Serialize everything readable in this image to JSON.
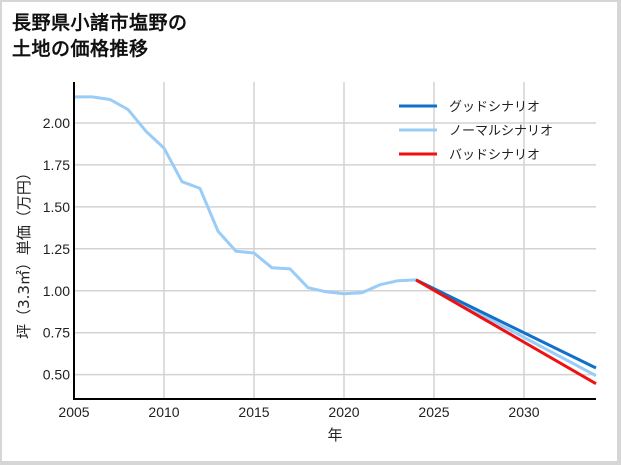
{
  "title_lines": [
    "長野県小諸市塩野の",
    "土地の価格推移"
  ],
  "chart_data": {
    "type": "line",
    "title": "長野県小諸市塩野の土地の価格推移",
    "xlabel": "年",
    "ylabel": "坪（3.3㎡）単価（万円）",
    "xlim": [
      2005,
      2034
    ],
    "ylim": [
      0.355,
      2.244
    ],
    "x_ticks": [
      2005,
      2010,
      2015,
      2020,
      2025,
      2030
    ],
    "y_ticks": [
      0.5,
      0.75,
      1.0,
      1.25,
      1.5,
      1.75,
      2.0
    ],
    "y_tick_labels": [
      "0.50",
      "0.75",
      "1.00",
      "1.25",
      "1.50",
      "1.75",
      "2.00"
    ],
    "grid": true,
    "legend_position": "upper right",
    "series": [
      {
        "name": "グッドシナリオ",
        "color": "#1171c9",
        "x": [
          2024,
          2034
        ],
        "values": [
          1.065,
          0.54
        ]
      },
      {
        "name": "ノーマルシナリオ",
        "color": "#99ccf7",
        "x": [
          2005,
          2006,
          2007,
          2008,
          2009,
          2010,
          2011,
          2012,
          2013,
          2014,
          2015,
          2016,
          2017,
          2018,
          2019,
          2020,
          2021,
          2022,
          2023,
          2024,
          2034
        ],
        "values": [
          2.155,
          2.155,
          2.14,
          2.08,
          1.95,
          1.85,
          1.65,
          1.61,
          1.355,
          1.235,
          1.225,
          1.137,
          1.13,
          1.018,
          0.994,
          0.982,
          0.988,
          1.036,
          1.06,
          1.065,
          0.494
        ]
      },
      {
        "name": "バッドシナリオ",
        "color": "#f01010",
        "x": [
          2024,
          2034
        ],
        "values": [
          1.065,
          0.446
        ]
      }
    ]
  }
}
